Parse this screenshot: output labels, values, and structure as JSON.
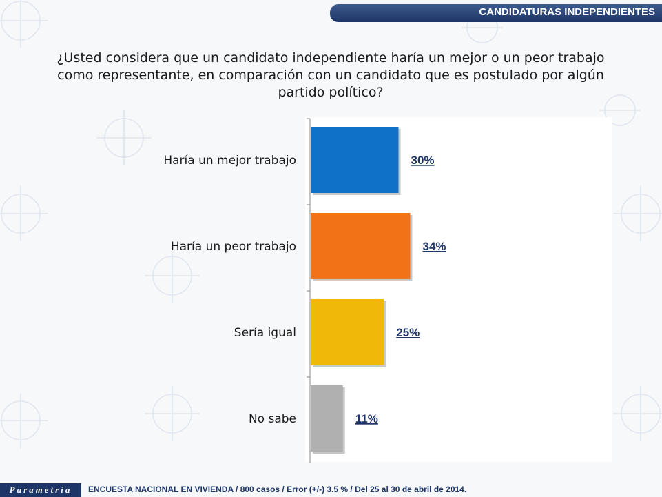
{
  "header": {
    "title": "CANDIDATURAS INDEPENDIENTES"
  },
  "question": "¿Usted considera que un candidato independiente haría un mejor o un peor trabajo como representante, en comparación con un candidato que es postulado por algún partido político?",
  "chart_data": {
    "type": "bar",
    "orientation": "horizontal",
    "categories": [
      "Haría un mejor trabajo",
      "Haría un peor trabajo",
      "Sería igual",
      "No sabe"
    ],
    "values": [
      30,
      34,
      25,
      11
    ],
    "value_labels": [
      "30%",
      "34%",
      "25%",
      "11%"
    ],
    "colors": [
      "#0f72c8",
      "#f27217",
      "#f0b90a",
      "#b0b0b0"
    ],
    "xlim": [
      0,
      100
    ],
    "grid": false
  },
  "footer": {
    "logo": "Parametría",
    "source": "ENCUESTA NACIONAL EN VIVIENDA / 800 casos / Error (+/-) 3.5 % / Del 25 al 30 de abril de 2014."
  }
}
